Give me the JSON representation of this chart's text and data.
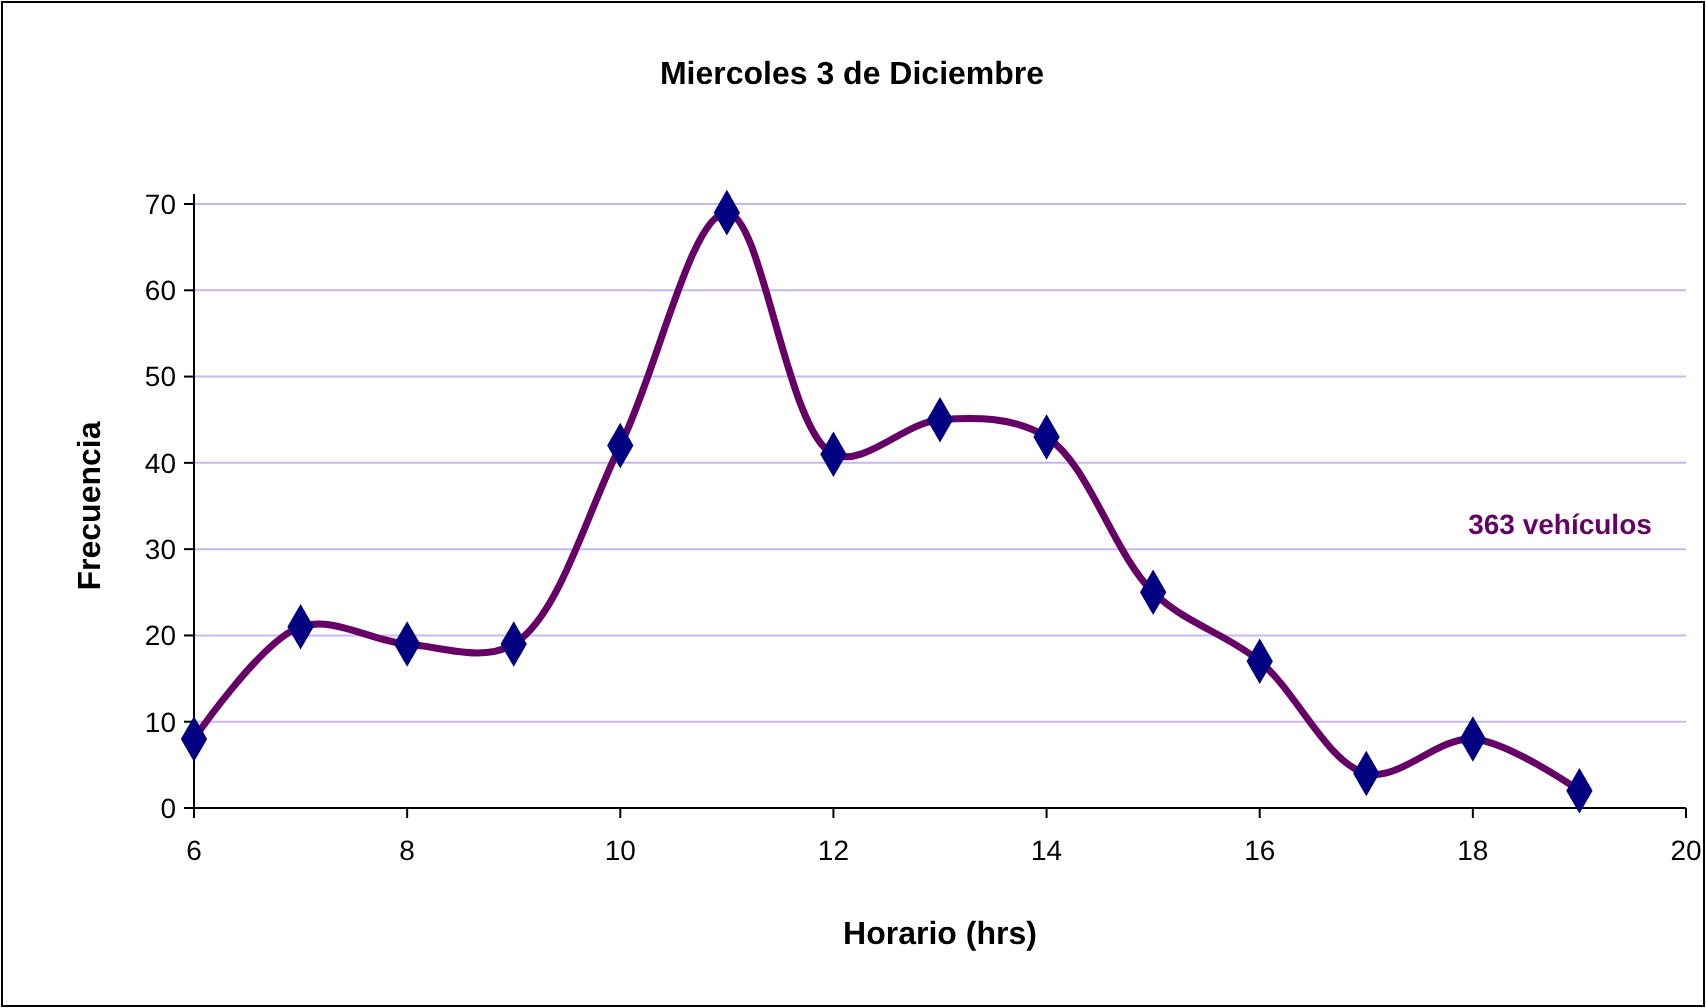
{
  "chart_data": {
    "type": "line",
    "title": "Miercoles 3 de Diciembre",
    "xlabel": "Horario (hrs)",
    "ylabel": "Frecuencia",
    "x": [
      6,
      7,
      8,
      9,
      10,
      11,
      12,
      13,
      14,
      15,
      16,
      17,
      18,
      19
    ],
    "series": [
      {
        "type": "line",
        "color": "#660066",
        "marker": "none",
        "values": [
          8,
          21,
          19,
          19,
          42,
          69,
          41,
          45,
          43,
          25,
          17,
          4,
          8,
          2
        ]
      },
      {
        "type": "scatter",
        "color": "#000080",
        "marker": "diamond",
        "values": [
          8,
          21,
          19,
          19,
          42,
          69,
          41,
          45,
          43,
          25,
          17,
          4,
          8,
          2
        ]
      }
    ],
    "xlim": [
      6,
      20
    ],
    "xticks": [
      6,
      8,
      10,
      12,
      14,
      16,
      18,
      20
    ],
    "ylim": [
      0,
      70
    ],
    "yticks": [
      0,
      10,
      20,
      30,
      40,
      50,
      60,
      70
    ],
    "grid": "y",
    "annotations": [
      "363 vehículos"
    ]
  }
}
